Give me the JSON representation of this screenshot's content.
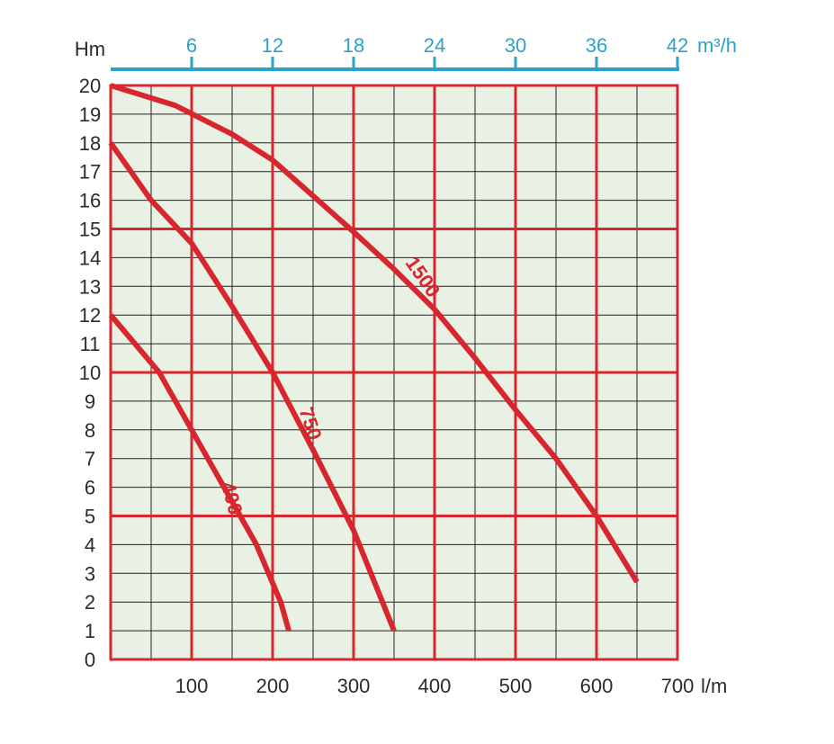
{
  "chart_data": {
    "type": "line",
    "ylabel": "Hm",
    "xlabel": "l/m",
    "x2label": "m³/h",
    "ylim": [
      0,
      20
    ],
    "xlim": [
      0,
      700
    ],
    "x2lim": [
      0,
      42
    ],
    "yticks": [
      "0",
      "1",
      "2",
      "3",
      "4",
      "5",
      "6",
      "7",
      "8",
      "9",
      "10",
      "11",
      "12",
      "13",
      "14",
      "15",
      "16",
      "17",
      "18",
      "19",
      "20"
    ],
    "xticks": [
      "100",
      "200",
      "300",
      "400",
      "500",
      "600",
      "700"
    ],
    "x2ticks": [
      "6",
      "12",
      "18",
      "24",
      "30",
      "36",
      "42"
    ],
    "grid": true,
    "colors": {
      "curve": "#d8262e",
      "major_grid": "#d8262e",
      "minor_grid": "#222222",
      "plot_bg": "#e9f1e4",
      "top_axis": "#2aa3c8"
    },
    "series": [
      {
        "name": "400",
        "points": [
          [
            0,
            12
          ],
          [
            30,
            11
          ],
          [
            60,
            10
          ],
          [
            80,
            9
          ],
          [
            100,
            8
          ],
          [
            120,
            7
          ],
          [
            140,
            6
          ],
          [
            160,
            5
          ],
          [
            180,
            4
          ],
          [
            195,
            3
          ],
          [
            210,
            2
          ],
          [
            220,
            1
          ]
        ]
      },
      {
        "name": "750",
        "points": [
          [
            0,
            18
          ],
          [
            50,
            16
          ],
          [
            100,
            14.5
          ],
          [
            150,
            12.3
          ],
          [
            200,
            10
          ],
          [
            250,
            7.3
          ],
          [
            300,
            4.5
          ],
          [
            350,
            1
          ]
        ]
      },
      {
        "name": "1500",
        "points": [
          [
            0,
            20
          ],
          [
            80,
            19.3
          ],
          [
            150,
            18.3
          ],
          [
            200,
            17.4
          ],
          [
            260,
            15.9
          ],
          [
            300,
            14.9
          ],
          [
            350,
            13.6
          ],
          [
            400,
            12.2
          ],
          [
            450,
            10.5
          ],
          [
            500,
            8.7
          ],
          [
            550,
            7
          ],
          [
            600,
            5
          ],
          [
            650,
            2.7
          ]
        ]
      }
    ]
  }
}
